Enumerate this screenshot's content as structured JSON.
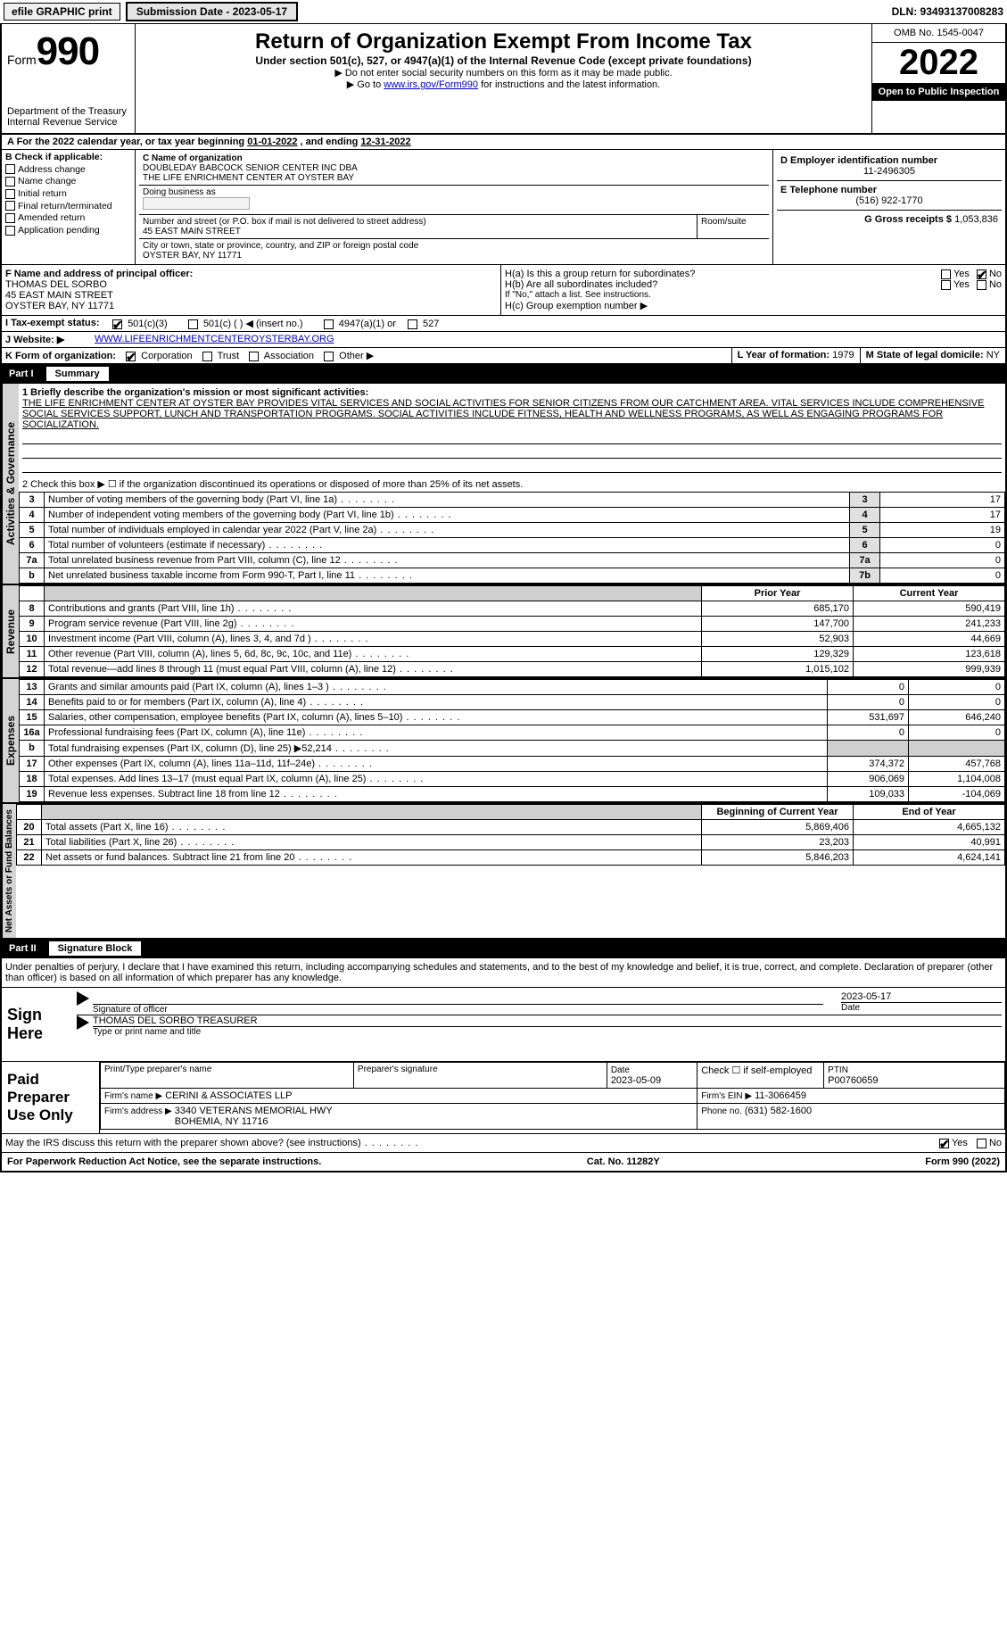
{
  "topbar": {
    "efile": "efile GRAPHIC print",
    "submission_label": "Submission Date - 2023-05-17",
    "dln_label": "DLN: 93493137008283"
  },
  "header": {
    "form_prefix": "Form",
    "form_number": "990",
    "dept": "Department of the Treasury\nInternal Revenue Service",
    "title": "Return of Organization Exempt From Income Tax",
    "sub1": "Under section 501(c), 527, or 4947(a)(1) of the Internal Revenue Code (except private foundations)",
    "sub2": "▶ Do not enter social security numbers on this form as it may be made public.",
    "sub3_prefix": "▶ Go to ",
    "sub3_link": "www.irs.gov/Form990",
    "sub3_suffix": " for instructions and the latest information.",
    "omb": "OMB No. 1545-0047",
    "year": "2022",
    "otp": "Open to Public Inspection"
  },
  "a_line": {
    "text_prefix": "A For the 2022 calendar year, or tax year beginning ",
    "begin": "01-01-2022",
    "mid": " , and ending ",
    "end": "12-31-2022"
  },
  "b": {
    "label": "B Check if applicable:",
    "opts": [
      "Address change",
      "Name change",
      "Initial return",
      "Final return/terminated",
      "Amended return",
      "Application pending"
    ]
  },
  "c": {
    "label": "C Name of organization",
    "name": "DOUBLEDAY BABCOCK SENIOR CENTER INC DBA\nTHE LIFE ENRICHMENT CENTER AT OYSTER BAY",
    "dba_label": "Doing business as",
    "dba": "",
    "addr_label": "Number and street (or P.O. box if mail is not delivered to street address)",
    "room_label": "Room/suite",
    "street": "45 EAST MAIN STREET",
    "city_label": "City or town, state or province, country, and ZIP or foreign postal code",
    "city": "OYSTER BAY, NY  11771"
  },
  "d": {
    "label": "D Employer identification number",
    "value": "11-2496305"
  },
  "e": {
    "label": "E Telephone number",
    "value": "(516) 922-1770"
  },
  "g": {
    "label": "G Gross receipts $",
    "value": "1,053,836"
  },
  "f": {
    "label": "F  Name and address of principal officer:",
    "name": "THOMAS DEL SORBO",
    "addr1": "45 EAST MAIN STREET",
    "addr2": "OYSTER BAY, NY  11771"
  },
  "h": {
    "a_label": "H(a)  Is this a group return for subordinates?",
    "b_label": "H(b)  Are all subordinates included?",
    "b_note": "If \"No,\" attach a list. See instructions.",
    "c_label": "H(c)  Group exemption number ▶",
    "yes": "Yes",
    "no": "No"
  },
  "i": {
    "label": "I  Tax-exempt status:",
    "c3": "501(c)(3)",
    "c": "501(c) (   ) ◀ (insert no.)",
    "a1": "4947(a)(1) or",
    "s527": "527"
  },
  "j": {
    "label": "J  Website: ▶",
    "value": "WWW.LIFEENRICHMENTCENTEROYSTERBAY.ORG"
  },
  "k": {
    "label": "K Form of organization:",
    "corp": "Corporation",
    "trust": "Trust",
    "assoc": "Association",
    "other": "Other ▶"
  },
  "l": {
    "label": "L Year of formation:",
    "value": "1979"
  },
  "m": {
    "label": "M State of legal domicile:",
    "value": "NY"
  },
  "part1": {
    "hdr_lbl": "Part I",
    "hdr_txt": "Summary",
    "line1_label": "1  Briefly describe the organization's mission or most significant activities:",
    "mission": "THE LIFE ENRICHMENT CENTER AT OYSTER BAY PROVIDES VITAL SERVICES AND SOCIAL ACTIVITIES FOR SENIOR CITIZENS FROM OUR CATCHMENT AREA. VITAL SERVICES INCLUDE COMPREHENSIVE SOCIAL SERVICES SUPPORT, LUNCH AND TRANSPORTATION PROGRAMS. SOCIAL ACTIVITIES INCLUDE FITNESS, HEALTH AND WELLNESS PROGRAMS, AS WELL AS ENGAGING PROGRAMS FOR SOCIALIZATION.",
    "line2": "2  Check this box ▶ ☐  if the organization discontinued its operations or disposed of more than 25% of its net assets.",
    "rows_gov": [
      {
        "n": "3",
        "t": "Number of voting members of the governing body (Part VI, line 1a)",
        "k": "3",
        "v": "17"
      },
      {
        "n": "4",
        "t": "Number of independent voting members of the governing body (Part VI, line 1b)",
        "k": "4",
        "v": "17"
      },
      {
        "n": "5",
        "t": "Total number of individuals employed in calendar year 2022 (Part V, line 2a)",
        "k": "5",
        "v": "19"
      },
      {
        "n": "6",
        "t": "Total number of volunteers (estimate if necessary)",
        "k": "6",
        "v": "0"
      },
      {
        "n": "7a",
        "t": "Total unrelated business revenue from Part VIII, column (C), line 12",
        "k": "7a",
        "v": "0"
      },
      {
        "n": "b",
        "t": "Net unrelated business taxable income from Form 990-T, Part I, line 11",
        "k": "7b",
        "v": "0"
      }
    ],
    "prior_label": "Prior Year",
    "current_label": "Current Year",
    "rows_rev": [
      {
        "n": "8",
        "t": "Contributions and grants (Part VIII, line 1h)",
        "p": "685,170",
        "c": "590,419"
      },
      {
        "n": "9",
        "t": "Program service revenue (Part VIII, line 2g)",
        "p": "147,700",
        "c": "241,233"
      },
      {
        "n": "10",
        "t": "Investment income (Part VIII, column (A), lines 3, 4, and 7d )",
        "p": "52,903",
        "c": "44,669"
      },
      {
        "n": "11",
        "t": "Other revenue (Part VIII, column (A), lines 5, 6d, 8c, 9c, 10c, and 11e)",
        "p": "129,329",
        "c": "123,618"
      },
      {
        "n": "12",
        "t": "Total revenue—add lines 8 through 11 (must equal Part VIII, column (A), line 12)",
        "p": "1,015,102",
        "c": "999,939"
      }
    ],
    "rows_exp": [
      {
        "n": "13",
        "t": "Grants and similar amounts paid (Part IX, column (A), lines 1–3 )",
        "p": "0",
        "c": "0"
      },
      {
        "n": "14",
        "t": "Benefits paid to or for members (Part IX, column (A), line 4)",
        "p": "0",
        "c": "0"
      },
      {
        "n": "15",
        "t": "Salaries, other compensation, employee benefits (Part IX, column (A), lines 5–10)",
        "p": "531,697",
        "c": "646,240"
      },
      {
        "n": "16a",
        "t": "Professional fundraising fees (Part IX, column (A), line 11e)",
        "p": "0",
        "c": "0"
      },
      {
        "n": "b",
        "t": "Total fundraising expenses (Part IX, column (D), line 25) ▶52,214",
        "p": "",
        "c": "",
        "shade": true
      },
      {
        "n": "17",
        "t": "Other expenses (Part IX, column (A), lines 11a–11d, 11f–24e)",
        "p": "374,372",
        "c": "457,768"
      },
      {
        "n": "18",
        "t": "Total expenses. Add lines 13–17 (must equal Part IX, column (A), line 25)",
        "p": "906,069",
        "c": "1,104,008"
      },
      {
        "n": "19",
        "t": "Revenue less expenses. Subtract line 18 from line 12",
        "p": "109,033",
        "c": "-104,069"
      }
    ],
    "boy_label": "Beginning of Current Year",
    "eoy_label": "End of Year",
    "rows_net": [
      {
        "n": "20",
        "t": "Total assets (Part X, line 16)",
        "p": "5,869,406",
        "c": "4,665,132"
      },
      {
        "n": "21",
        "t": "Total liabilities (Part X, line 26)",
        "p": "23,203",
        "c": "40,991"
      },
      {
        "n": "22",
        "t": "Net assets or fund balances. Subtract line 21 from line 20",
        "p": "5,846,203",
        "c": "4,624,141"
      }
    ],
    "tabs": {
      "gov": "Activities & Governance",
      "rev": "Revenue",
      "exp": "Expenses",
      "net": "Net Assets or Fund Balances"
    }
  },
  "part2": {
    "hdr_lbl": "Part II",
    "hdr_txt": "Signature Block",
    "jurat": "Under penalties of perjury, I declare that I have examined this return, including accompanying schedules and statements, and to the best of my knowledge and belief, it is true, correct, and complete. Declaration of preparer (other than officer) is based on all information of which preparer has any knowledge.",
    "sign_here": "Sign Here",
    "sig_officer": "Signature of officer",
    "date": "Date",
    "sig_date": "2023-05-17",
    "officer_name": "THOMAS DEL SORBO  TREASURER",
    "type_name": "Type or print name and title",
    "paid": "Paid Preparer Use Only",
    "pt_name_label": "Print/Type preparer's name",
    "pt_sig_label": "Preparer's signature",
    "pt_date_label": "Date",
    "pt_date": "2023-05-09",
    "pt_check_label": "Check ☐ if self-employed",
    "ptin_label": "PTIN",
    "ptin": "P00760659",
    "firm_name_label": "Firm's name    ▶",
    "firm_name": "CERINI & ASSOCIATES LLP",
    "firm_ein_label": "Firm's EIN ▶",
    "firm_ein": "11-3066459",
    "firm_addr_label": "Firm's address ▶",
    "firm_addr": "3340 VETERANS MEMORIAL HWY\nBOHEMIA, NY  11716",
    "phone_label": "Phone no.",
    "phone": "(631) 582-1600",
    "may_irs": "May the IRS discuss this return with the preparer shown above? (see instructions)"
  },
  "footer": {
    "pra": "For Paperwork Reduction Act Notice, see the separate instructions.",
    "cat": "Cat. No. 11282Y",
    "form": "Form 990 (2022)"
  }
}
